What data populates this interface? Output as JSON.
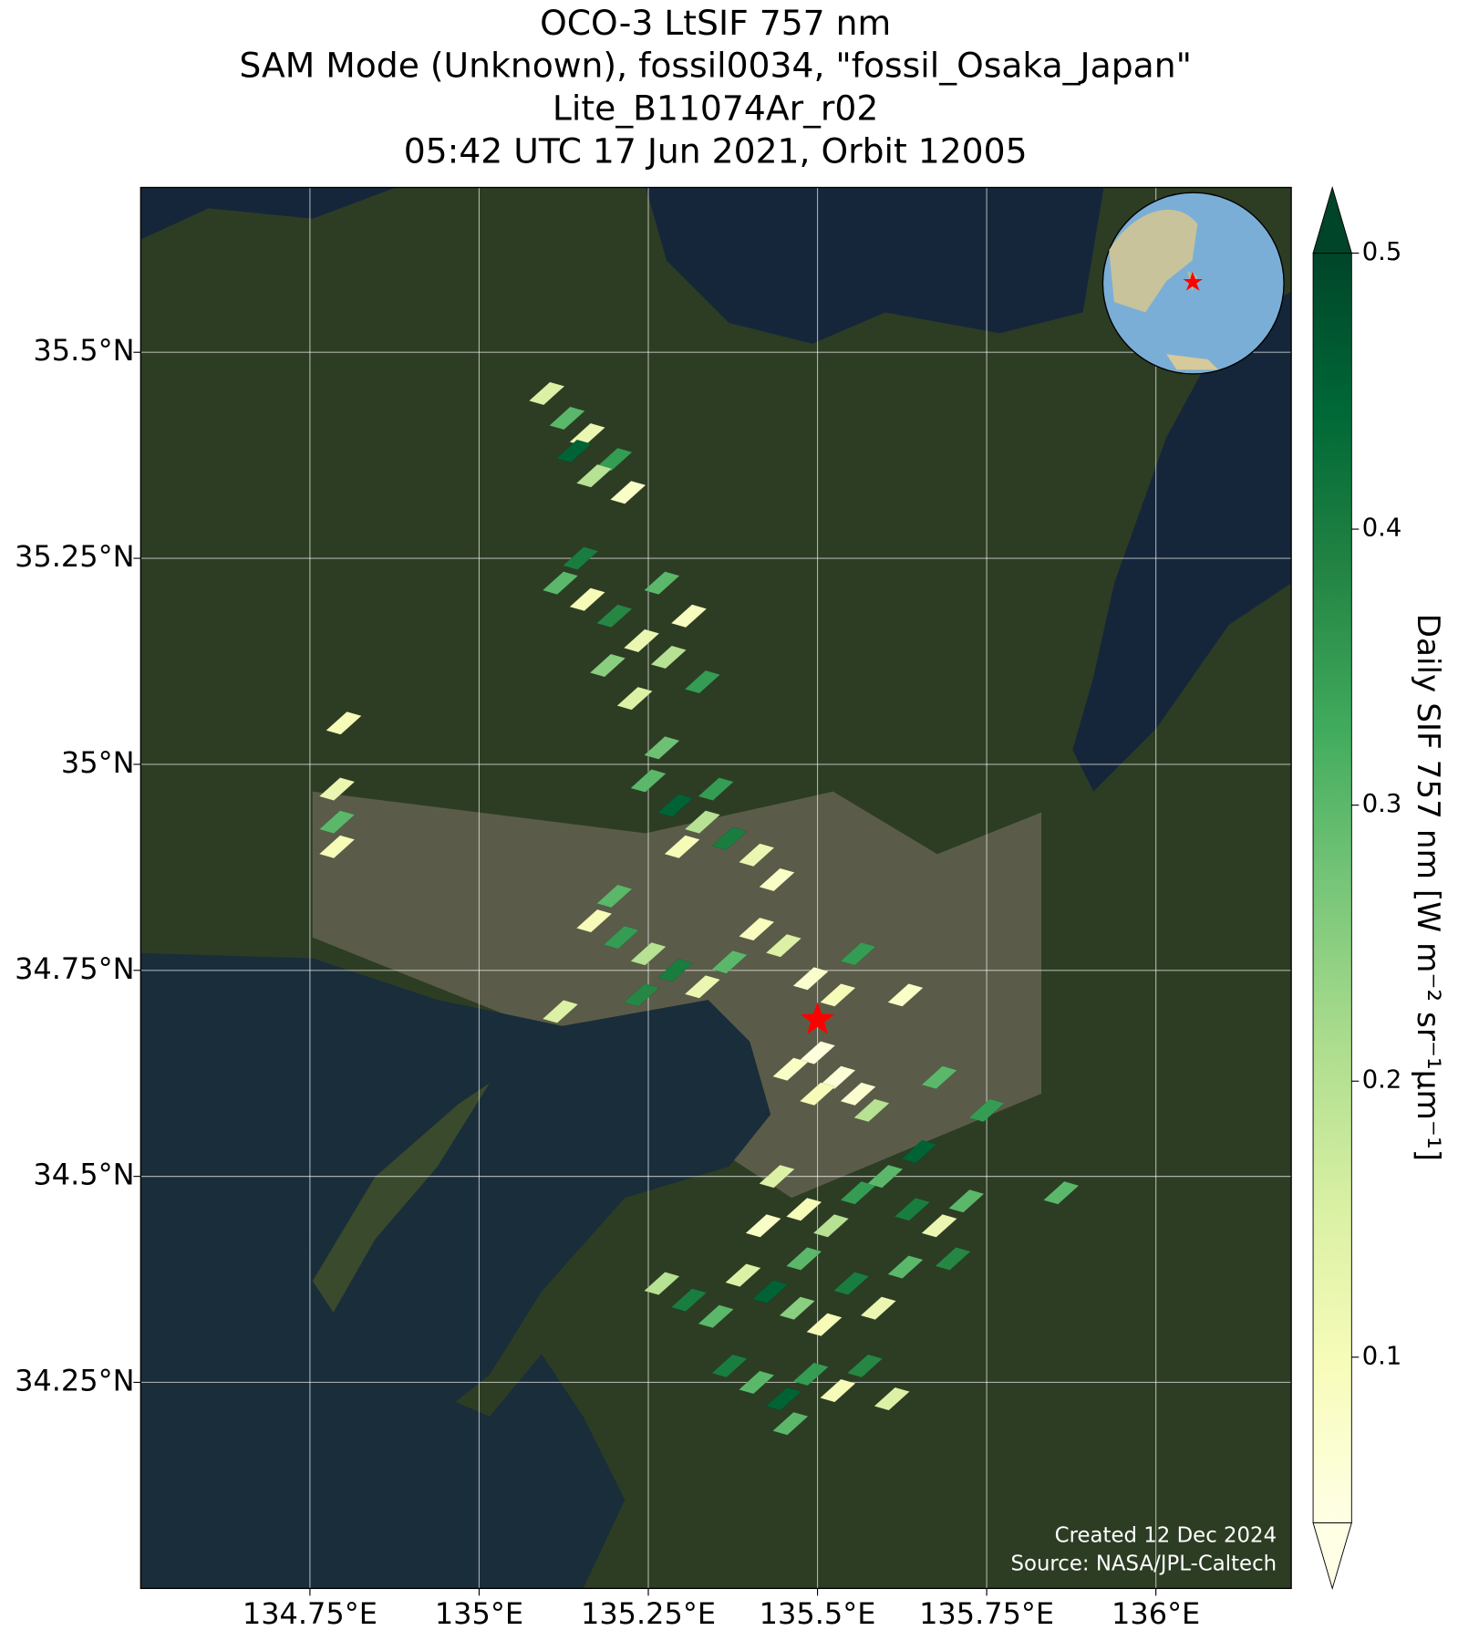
{
  "chart_data": {
    "type": "map",
    "title": [
      "OCO-3 LtSIF 757 nm",
      "SAM Mode (Unknown), fossil0034, \"fossil_Osaka_Japan\"",
      "Lite_B11074Ar_r02",
      "05:42 UTC 17 Jun 2021, Orbit 12005"
    ],
    "xlim": [
      134.5,
      136.2
    ],
    "ylim": [
      34.0,
      35.7
    ],
    "xticks": [
      {
        "value": 134.75,
        "label": "134.75°E"
      },
      {
        "value": 135,
        "label": "135°E"
      },
      {
        "value": 135.25,
        "label": "135.25°E"
      },
      {
        "value": 135.5,
        "label": "135.5°E"
      },
      {
        "value": 135.75,
        "label": "135.75°E"
      },
      {
        "value": 136,
        "label": "136°E"
      }
    ],
    "yticks": [
      {
        "value": 34.25,
        "label": "34.25°N"
      },
      {
        "value": 34.5,
        "label": "34.5°N"
      },
      {
        "value": 34.75,
        "label": "34.75°N"
      },
      {
        "value": 35,
        "label": "35°N"
      },
      {
        "value": 35.25,
        "label": "35.25°N"
      },
      {
        "value": 35.5,
        "label": "35.5°N"
      }
    ],
    "grid": true,
    "colorbar_label": "Daily SIF 757 nm [W m⁻² sr⁻¹μm⁻¹]",
    "clim": [
      0.04,
      0.5
    ],
    "cticks": [
      0.1,
      0.2,
      0.3,
      0.4,
      0.5
    ],
    "colormap": [
      "#ffffe5",
      "#f7fcb9",
      "#d9f0a3",
      "#addd8e",
      "#78c679",
      "#41ab5d",
      "#238443",
      "#006837",
      "#004529"
    ],
    "target": {
      "lon": 135.5,
      "lat": 34.69,
      "color": "#ff0000"
    },
    "footprints": {
      "lon": [
        135.1,
        135.13,
        135.16,
        135.2,
        135.17,
        135.22,
        135.14,
        135.12,
        135.16,
        135.2,
        135.24,
        135.28,
        135.33,
        135.19,
        135.23,
        135.27,
        135.15,
        135.31,
        135.25,
        135.29,
        135.33,
        135.37,
        135.41,
        135.3,
        135.35,
        135.44,
        135.27,
        135.17,
        135.21,
        135.25,
        135.29,
        135.33,
        135.37,
        135.41,
        135.45,
        135.49,
        135.2,
        135.24,
        135.12,
        135.53,
        135.56,
        135.5,
        135.53,
        135.56,
        135.5,
        135.46,
        135.58,
        135.44,
        135.48,
        135.52,
        135.56,
        135.6,
        135.64,
        135.68,
        135.72,
        135.65,
        135.7,
        135.42,
        135.48,
        135.27,
        135.31,
        135.35,
        135.39,
        135.43,
        135.47,
        135.51,
        135.55,
        135.59,
        135.63,
        135.37,
        135.41,
        135.45,
        135.49,
        135.53,
        135.57,
        135.61,
        135.46,
        134.8,
        134.79,
        134.79,
        134.79,
        135.75,
        135.68,
        135.86,
        135.63
      ],
      "lat": [
        35.45,
        35.42,
        35.4,
        35.37,
        35.35,
        35.33,
        35.38,
        35.22,
        35.2,
        35.18,
        35.15,
        35.13,
        35.1,
        35.12,
        35.08,
        35.22,
        35.25,
        35.18,
        34.98,
        34.95,
        34.93,
        34.91,
        34.89,
        34.9,
        34.97,
        34.86,
        35.02,
        34.81,
        34.79,
        34.77,
        34.75,
        34.73,
        34.76,
        34.8,
        34.78,
        34.74,
        34.84,
        34.72,
        34.7,
        34.72,
        34.77,
        34.65,
        34.62,
        34.6,
        34.6,
        34.63,
        34.58,
        34.5,
        34.46,
        34.44,
        34.48,
        34.5,
        34.46,
        34.44,
        34.47,
        34.53,
        34.4,
        34.44,
        34.4,
        34.37,
        34.35,
        34.33,
        34.38,
        34.36,
        34.34,
        34.32,
        34.37,
        34.34,
        34.39,
        34.27,
        34.25,
        34.23,
        34.26,
        34.24,
        34.27,
        34.23,
        34.2,
        35.05,
        34.97,
        34.93,
        34.9,
        34.58,
        34.62,
        34.48,
        34.72
      ],
      "values": [
        0.15,
        0.3,
        0.12,
        0.35,
        0.2,
        0.08,
        0.45,
        0.3,
        0.1,
        0.38,
        0.12,
        0.2,
        0.35,
        0.25,
        0.15,
        0.3,
        0.4,
        0.09,
        0.3,
        0.45,
        0.2,
        0.4,
        0.12,
        0.1,
        0.35,
        0.08,
        0.28,
        0.1,
        0.35,
        0.2,
        0.4,
        0.12,
        0.3,
        0.09,
        0.15,
        0.07,
        0.3,
        0.38,
        0.15,
        0.1,
        0.35,
        0.05,
        0.06,
        0.07,
        0.1,
        0.08,
        0.2,
        0.15,
        0.1,
        0.2,
        0.35,
        0.3,
        0.4,
        0.12,
        0.3,
        0.45,
        0.38,
        0.08,
        0.3,
        0.2,
        0.4,
        0.3,
        0.15,
        0.45,
        0.25,
        0.1,
        0.4,
        0.12,
        0.3,
        0.4,
        0.3,
        0.45,
        0.35,
        0.1,
        0.38,
        0.15,
        0.3,
        0.1,
        0.12,
        0.3,
        0.1,
        0.35,
        0.3,
        0.3,
        0.08
      ]
    },
    "credits": [
      "Created 12 Dec 2024",
      "Source: NASA/JPL-Caltech"
    ]
  }
}
